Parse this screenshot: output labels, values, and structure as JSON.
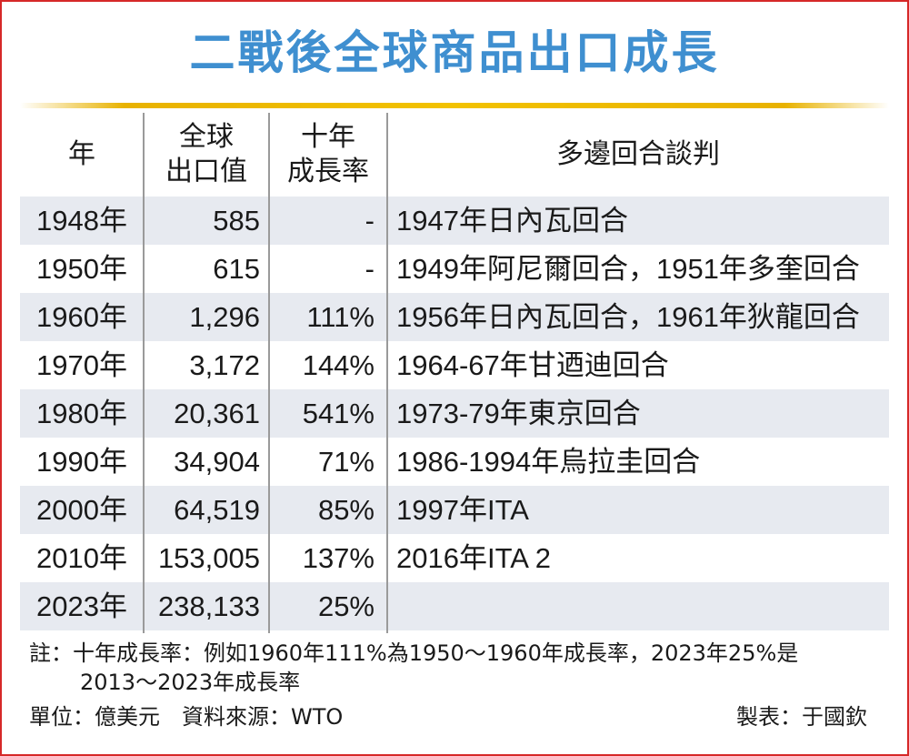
{
  "title": "二戰後全球商品出口成長",
  "table": {
    "headers": {
      "year": "年",
      "value_line1": "全球",
      "value_line2": "出口值",
      "rate_line1": "十年",
      "rate_line2": "成長率",
      "round": "多邊回合談判"
    },
    "rows": [
      {
        "year": "1948年",
        "value": "585",
        "rate": "-",
        "round": "1947年日內瓦回合"
      },
      {
        "year": "1950年",
        "value": "615",
        "rate": "-",
        "round": "1949年阿尼爾回合，1951年多奎回合"
      },
      {
        "year": "1960年",
        "value": "1,296",
        "rate": "111%",
        "round": "1956年日內瓦回合，1961年狄龍回合"
      },
      {
        "year": "1970年",
        "value": "3,172",
        "rate": "144%",
        "round": "1964-67年甘迺迪回合"
      },
      {
        "year": "1980年",
        "value": "20,361",
        "rate": "541%",
        "round": "1973-79年東京回合"
      },
      {
        "year": "1990年",
        "value": "34,904",
        "rate": "71%",
        "round": "1986-1994年烏拉圭回合"
      },
      {
        "year": "2000年",
        "value": "64,519",
        "rate": "85%",
        "round": "1997年ITA"
      },
      {
        "year": "2010年",
        "value": "153,005",
        "rate": "137%",
        "round": "2016年ITA 2"
      },
      {
        "year": "2023年",
        "value": "238,133",
        "rate": "25%",
        "round": ""
      }
    ]
  },
  "notes": {
    "line1": "註：十年成長率：例如1960年111%為1950～1960年成長率，2023年25%是",
    "line2": "2013～2023年成長率",
    "unit_source": "單位：億美元　資料來源：WTO",
    "credit": "製表：于國欽"
  },
  "colors": {
    "title": "#3f8fd0",
    "accent_bar": "#f2c200",
    "border": "#d62828",
    "row_shade": "#e7eaf0"
  },
  "chart_data": {
    "type": "table",
    "title": "二戰後全球商品出口成長",
    "columns": [
      "年",
      "全球出口值",
      "十年成長率",
      "多邊回合談判"
    ],
    "rows": [
      [
        "1948年",
        585,
        null,
        "1947年日內瓦回合"
      ],
      [
        "1950年",
        615,
        null,
        "1949年阿尼爾回合，1951年多奎回合"
      ],
      [
        "1960年",
        1296,
        111,
        "1956年日內瓦回合，1961年狄龍回合"
      ],
      [
        "1970年",
        3172,
        144,
        "1964-67年甘迺迪回合"
      ],
      [
        "1980年",
        20361,
        541,
        "1973-79年東京回合"
      ],
      [
        "1990年",
        34904,
        71,
        "1986-1994年烏拉圭回合"
      ],
      [
        "2000年",
        64519,
        85,
        "1997年ITA"
      ],
      [
        "2010年",
        153005,
        137,
        "2016年ITA 2"
      ],
      [
        "2023年",
        238133,
        25,
        ""
      ]
    ],
    "units": "億美元",
    "source": "WTO"
  }
}
